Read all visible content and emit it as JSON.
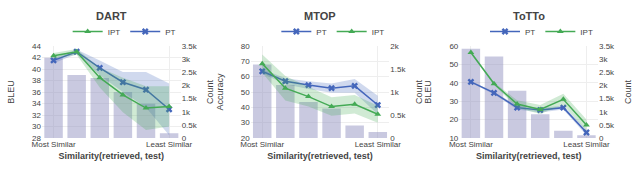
{
  "chart_data": [
    {
      "type": "line",
      "title": "DART",
      "xlabel": "Similarity(retrieved, test)",
      "ylabel": "BLEU",
      "y2label": "Count",
      "categories": [
        "Most Similar",
        null,
        null,
        null,
        null,
        "Least Similar"
      ],
      "series": [
        {
          "name": "PT",
          "color": "#4466bb",
          "marker": "x",
          "values": [
            41.5,
            43.0,
            40.2,
            37.7,
            36.4,
            33.0
          ],
          "upper": [
            42.0,
            43.4,
            41.5,
            39.5,
            39.5,
            37.5
          ],
          "lower": [
            41.0,
            42.6,
            38.9,
            36.0,
            33.3,
            28.5
          ]
        },
        {
          "name": "IPT",
          "color": "#44aa55",
          "marker": "triangle-up",
          "values": [
            42.3,
            43.0,
            38.5,
            35.5,
            33.2,
            33.5
          ],
          "upper": [
            42.8,
            43.5,
            40.2,
            38.5,
            37.0,
            37.0
          ],
          "lower": [
            41.8,
            42.5,
            36.8,
            32.5,
            29.4,
            30.0
          ]
        },
        {
          "type": "bar",
          "axis": "y2",
          "color": "#8888bb",
          "values": [
            3050,
            2400,
            2280,
            1750,
            1300,
            180
          ]
        }
      ],
      "ylim": [
        28,
        44
      ],
      "yticks": [
        28,
        30,
        32,
        34,
        36,
        38,
        40,
        42,
        44
      ],
      "y2lim": [
        0,
        3500
      ],
      "y2ticks": [
        0,
        {
          "value": 500,
          "label": "0.5k"
        },
        {
          "value": 1000,
          "label": "1k"
        },
        {
          "value": 1500,
          "label": "1.5k"
        },
        {
          "value": 2000,
          "label": "2k"
        },
        {
          "value": 2500,
          "label": "2.5k"
        },
        {
          "value": 3000,
          "label": "3k"
        },
        {
          "value": 3500,
          "label": "3.5k"
        }
      ],
      "grid": true,
      "legend": "upper right"
    },
    {
      "type": "line",
      "title": "MTOP",
      "xlabel": "Similarity(retrieved, test)",
      "ylabel": "Accuracy",
      "y2label": "Count",
      "categories": [
        "Most Similar",
        null,
        null,
        null,
        null,
        "Least Similar"
      ],
      "series": [
        {
          "name": "PT",
          "color": "#4466bb",
          "marker": "x",
          "values": [
            63.5,
            57.0,
            54.5,
            52.5,
            54.0,
            41.5
          ],
          "upper": [
            65.0,
            59.0,
            57.0,
            55.5,
            58.5,
            47.5
          ],
          "lower": [
            62.0,
            55.0,
            52.0,
            49.5,
            49.5,
            35.5
          ]
        },
        {
          "name": "IPT",
          "color": "#44aa55",
          "marker": "triangle-up",
          "values": [
            68.5,
            52.5,
            47.0,
            40.5,
            42.0,
            35.5
          ],
          "upper": [
            74.5,
            60.5,
            53.5,
            46.5,
            48.0,
            41.0
          ],
          "lower": [
            62.5,
            44.5,
            40.5,
            34.5,
            36.0,
            30.0
          ]
        },
        {
          "type": "bar",
          "axis": "y2",
          "color": "#8888bb",
          "values": [
            1600,
            1150,
            780,
            640,
            270,
            130
          ]
        }
      ],
      "ylim": [
        20,
        80
      ],
      "yticks": [
        20,
        30,
        40,
        50,
        60,
        70,
        80
      ],
      "y2lim": [
        0,
        2000
      ],
      "y2ticks": [
        0,
        {
          "value": 500,
          "label": "0.5k"
        },
        {
          "value": 1000,
          "label": "1k"
        },
        {
          "value": 1500,
          "label": "1.5k"
        },
        {
          "value": 2000,
          "label": "2k"
        }
      ],
      "grid": true,
      "legend": "upper right"
    },
    {
      "type": "line",
      "title": "ToTTo",
      "xlabel": "Similarity(retrieved, test)",
      "ylabel": "BLEU",
      "y2label": "Count",
      "categories": [
        "Most Similar",
        null,
        null,
        null,
        null,
        "Least Similar"
      ],
      "series": [
        {
          "name": "PT",
          "color": "#4466bb",
          "marker": "x",
          "values": [
            40.5,
            34.5,
            26.5,
            25.2,
            26.5,
            13.0
          ],
          "upper": [
            41.0,
            35.2,
            27.5,
            26.5,
            27.5,
            14.5
          ],
          "lower": [
            40.0,
            33.8,
            25.5,
            23.9,
            25.5,
            11.5
          ]
        },
        {
          "name": "IPT",
          "color": "#44aa55",
          "marker": "triangle-up",
          "values": [
            56.5,
            39.5,
            28.5,
            25.5,
            31.0,
            17.0
          ],
          "upper": [
            57.2,
            40.2,
            30.5,
            28.0,
            34.0,
            20.0
          ],
          "lower": [
            55.8,
            38.8,
            26.5,
            23.0,
            28.0,
            14.0
          ]
        },
        {
          "type": "bar",
          "axis": "y2",
          "color": "#8888bb",
          "values": [
            3400,
            3100,
            1800,
            900,
            280,
            100
          ]
        }
      ],
      "ylim": [
        10,
        60
      ],
      "yticks": [
        10,
        20,
        30,
        40,
        50,
        60
      ],
      "y2lim": [
        0,
        3500
      ],
      "y2ticks": [
        0,
        {
          "value": 500,
          "label": "0.5k"
        },
        {
          "value": 1000,
          "label": "1k"
        },
        {
          "value": 1500,
          "label": "1.5k"
        },
        {
          "value": 2000,
          "label": "2k"
        },
        {
          "value": 2500,
          "label": "2.5k"
        },
        {
          "value": 3000,
          "label": "3k"
        },
        {
          "value": 3500,
          "label": "3.5k"
        }
      ],
      "grid": true,
      "legend": "upper right"
    }
  ]
}
